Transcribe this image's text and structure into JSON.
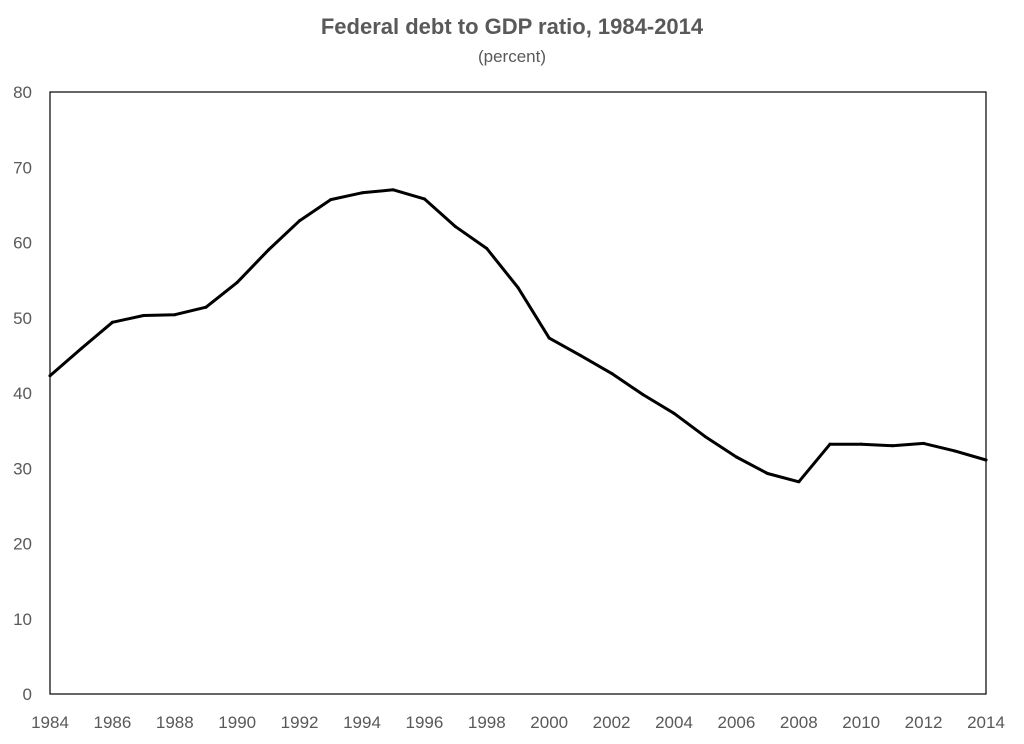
{
  "chart_data": {
    "type": "line",
    "title": "Federal debt to GDP ratio, 1984-2014",
    "subtitle": "(percent)",
    "xlabel": "",
    "ylabel": "",
    "xlim": [
      1984,
      2014
    ],
    "ylim": [
      0,
      80
    ],
    "y_ticks": [
      0,
      10,
      20,
      30,
      40,
      50,
      60,
      70,
      80
    ],
    "x_ticks": [
      1984,
      1986,
      1988,
      1990,
      1992,
      1994,
      1996,
      1998,
      2000,
      2002,
      2004,
      2006,
      2008,
      2010,
      2012,
      2014
    ],
    "grid": false,
    "legend": "none",
    "series": [
      {
        "name": "Federal debt to GDP ratio",
        "color": "#000000",
        "x": [
          1984,
          1985,
          1986,
          1987,
          1988,
          1989,
          1990,
          1991,
          1992,
          1993,
          1994,
          1995,
          1996,
          1997,
          1998,
          1999,
          2000,
          2001,
          2002,
          2003,
          2004,
          2005,
          2006,
          2007,
          2008,
          2009,
          2010,
          2011,
          2012,
          2013,
          2014
        ],
        "values": [
          42.3,
          45.9,
          49.4,
          50.3,
          50.4,
          51.4,
          54.7,
          59.0,
          62.9,
          65.7,
          66.6,
          67.0,
          65.8,
          62.1,
          59.2,
          54.0,
          47.3,
          45.0,
          42.6,
          39.8,
          37.3,
          34.2,
          31.5,
          29.3,
          28.2,
          33.2,
          33.2,
          33.0,
          33.3,
          32.3,
          31.1
        ]
      }
    ]
  }
}
